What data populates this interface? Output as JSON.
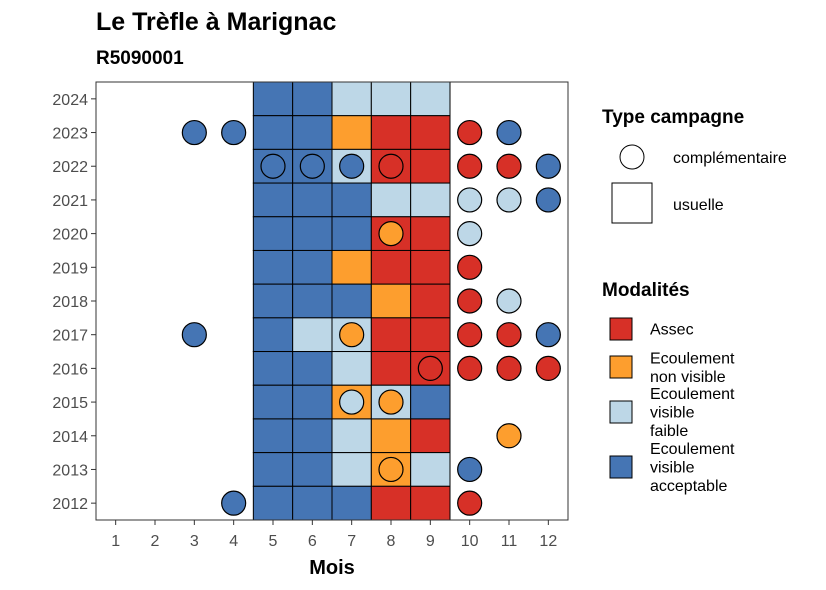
{
  "chart_data": {
    "type": "heatmap",
    "title": "Le Trèfle à Marignac",
    "subtitle": "R5090001",
    "xlabel": "Mois",
    "ylabel": "",
    "x": [
      1,
      2,
      3,
      4,
      5,
      6,
      7,
      8,
      9,
      10,
      11,
      12
    ],
    "y": [
      2012,
      2013,
      2014,
      2015,
      2016,
      2017,
      2018,
      2019,
      2020,
      2021,
      2022,
      2023,
      2024
    ],
    "legend_campagne": {
      "title": "Type campagne",
      "entries": [
        {
          "key": "complementaire",
          "label": "complémentaire",
          "shape": "circle"
        },
        {
          "key": "usuelle",
          "label": "usuelle",
          "shape": "square"
        }
      ]
    },
    "legend_modalites": {
      "title": "Modalités",
      "entries": [
        {
          "key": "assec",
          "lines": [
            "Assec"
          ],
          "color": "#d73027"
        },
        {
          "key": "non_visible",
          "lines": [
            "Ecoulement",
            "non visible"
          ],
          "color": "#fd9e2e"
        },
        {
          "key": "visible_faible",
          "lines": [
            "Ecoulement",
            "visible",
            "faible"
          ],
          "color": "#bdd7e7"
        },
        {
          "key": "visible_acceptable",
          "lines": [
            "Ecoulement",
            "visible",
            "acceptable"
          ],
          "color": "#4575b4"
        }
      ]
    },
    "usuelle": [
      {
        "year": 2024,
        "months": {
          "5": "visible_acceptable",
          "6": "visible_acceptable",
          "7": "visible_faible",
          "8": "visible_faible",
          "9": "visible_faible"
        }
      },
      {
        "year": 2023,
        "months": {
          "5": "visible_acceptable",
          "6": "visible_acceptable",
          "7": "non_visible",
          "8": "assec",
          "9": "assec"
        }
      },
      {
        "year": 2022,
        "months": {
          "5": "visible_acceptable",
          "6": "visible_acceptable",
          "7": "visible_faible",
          "8": "assec",
          "9": "assec"
        }
      },
      {
        "year": 2021,
        "months": {
          "5": "visible_acceptable",
          "6": "visible_acceptable",
          "7": "visible_acceptable",
          "8": "visible_faible",
          "9": "visible_faible"
        }
      },
      {
        "year": 2020,
        "months": {
          "5": "visible_acceptable",
          "6": "visible_acceptable",
          "7": "visible_acceptable",
          "8": "assec",
          "9": "assec"
        }
      },
      {
        "year": 2019,
        "months": {
          "5": "visible_acceptable",
          "6": "visible_acceptable",
          "7": "non_visible",
          "8": "assec",
          "9": "assec"
        }
      },
      {
        "year": 2018,
        "months": {
          "5": "visible_acceptable",
          "6": "visible_acceptable",
          "7": "visible_acceptable",
          "8": "non_visible",
          "9": "assec"
        }
      },
      {
        "year": 2017,
        "months": {
          "5": "visible_acceptable",
          "6": "visible_faible",
          "7": "visible_faible",
          "8": "assec",
          "9": "assec"
        }
      },
      {
        "year": 2016,
        "months": {
          "5": "visible_acceptable",
          "6": "visible_acceptable",
          "7": "visible_faible",
          "8": "assec",
          "9": "assec"
        }
      },
      {
        "year": 2015,
        "months": {
          "5": "visible_acceptable",
          "6": "visible_acceptable",
          "7": "non_visible",
          "8": "visible_faible",
          "9": "visible_acceptable"
        }
      },
      {
        "year": 2014,
        "months": {
          "5": "visible_acceptable",
          "6": "visible_acceptable",
          "7": "visible_faible",
          "8": "non_visible",
          "9": "assec"
        }
      },
      {
        "year": 2013,
        "months": {
          "5": "visible_acceptable",
          "6": "visible_acceptable",
          "7": "visible_faible",
          "8": "non_visible",
          "9": "visible_faible"
        }
      },
      {
        "year": 2012,
        "months": {
          "5": "visible_acceptable",
          "6": "visible_acceptable",
          "7": "visible_acceptable",
          "8": "assec",
          "9": "assec"
        }
      }
    ],
    "complementaire": [
      {
        "year": 2023,
        "month": 3,
        "value": "visible_acceptable"
      },
      {
        "year": 2023,
        "month": 4,
        "value": "visible_acceptable"
      },
      {
        "year": 2023,
        "month": 10,
        "value": "assec"
      },
      {
        "year": 2023,
        "month": 11,
        "value": "visible_acceptable"
      },
      {
        "year": 2022,
        "month": 5,
        "value": "visible_acceptable"
      },
      {
        "year": 2022,
        "month": 6,
        "value": "visible_acceptable"
      },
      {
        "year": 2022,
        "month": 7,
        "value": "visible_acceptable"
      },
      {
        "year": 2022,
        "month": 8,
        "value": "assec"
      },
      {
        "year": 2022,
        "month": 10,
        "value": "assec"
      },
      {
        "year": 2022,
        "month": 11,
        "value": "assec"
      },
      {
        "year": 2022,
        "month": 12,
        "value": "visible_acceptable"
      },
      {
        "year": 2021,
        "month": 10,
        "value": "visible_faible"
      },
      {
        "year": 2021,
        "month": 11,
        "value": "visible_faible"
      },
      {
        "year": 2021,
        "month": 12,
        "value": "visible_acceptable"
      },
      {
        "year": 2020,
        "month": 8,
        "value": "non_visible"
      },
      {
        "year": 2020,
        "month": 10,
        "value": "visible_faible"
      },
      {
        "year": 2019,
        "month": 10,
        "value": "assec"
      },
      {
        "year": 2018,
        "month": 10,
        "value": "assec"
      },
      {
        "year": 2018,
        "month": 11,
        "value": "visible_faible"
      },
      {
        "year": 2017,
        "month": 3,
        "value": "visible_acceptable"
      },
      {
        "year": 2017,
        "month": 7,
        "value": "non_visible"
      },
      {
        "year": 2017,
        "month": 10,
        "value": "assec"
      },
      {
        "year": 2017,
        "month": 11,
        "value": "assec"
      },
      {
        "year": 2017,
        "month": 12,
        "value": "visible_acceptable"
      },
      {
        "year": 2016,
        "month": 9,
        "value": "assec"
      },
      {
        "year": 2016,
        "month": 10,
        "value": "assec"
      },
      {
        "year": 2016,
        "month": 11,
        "value": "assec"
      },
      {
        "year": 2016,
        "month": 12,
        "value": "assec"
      },
      {
        "year": 2015,
        "month": 7,
        "value": "visible_faible"
      },
      {
        "year": 2015,
        "month": 8,
        "value": "non_visible"
      },
      {
        "year": 2014,
        "month": 11,
        "value": "non_visible"
      },
      {
        "year": 2013,
        "month": 8,
        "value": "non_visible"
      },
      {
        "year": 2013,
        "month": 10,
        "value": "visible_acceptable"
      },
      {
        "year": 2012,
        "month": 4,
        "value": "visible_acceptable"
      },
      {
        "year": 2012,
        "month": 10,
        "value": "assec"
      }
    ]
  }
}
